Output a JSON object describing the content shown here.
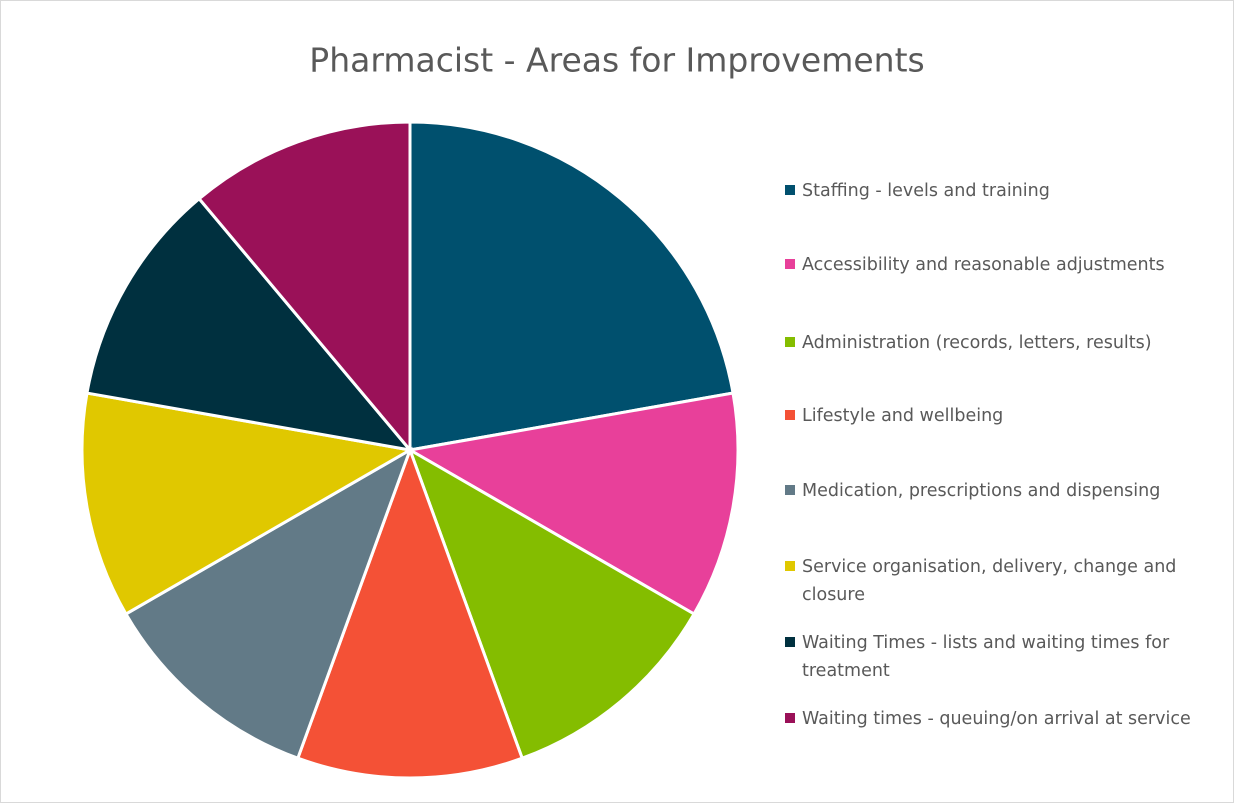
{
  "chart_data": {
    "type": "pie",
    "title": "Pharmacist - Areas for Improvements",
    "categories": [
      "Staffing - levels and training",
      "Accessibility and reasonable adjustments",
      "Administration (records, letters, results)",
      "Lifestyle and wellbeing",
      "Medication, prescriptions and dispensing",
      "Service organisation, delivery, change and closure",
      "Waiting Times - lists and waiting times for treatment",
      "Waiting times - queuing/on arrival at service"
    ],
    "values": [
      22.2,
      11.1,
      11.1,
      11.1,
      11.1,
      11.1,
      11.1,
      11.1
    ],
    "colors": [
      "#00506e",
      "#e8409a",
      "#84bd00",
      "#f45136",
      "#627a87",
      "#e0c800",
      "#00303f",
      "#9a1158"
    ],
    "legend": "right"
  }
}
